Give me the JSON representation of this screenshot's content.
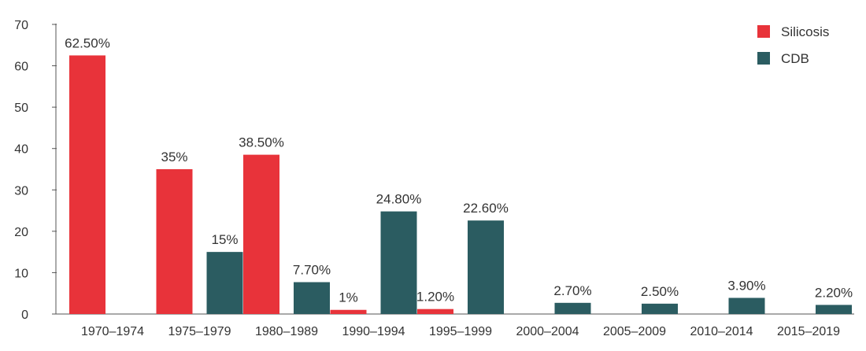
{
  "chart_data": {
    "type": "bar",
    "categories": [
      "1970–1974",
      "1975–1979",
      "1980–1989",
      "1990–1994",
      "1995–1999",
      "2000–2004",
      "2005–2009",
      "2010–2014",
      "2015–2019"
    ],
    "series": [
      {
        "name": "Silicosis",
        "color": "#e8333a",
        "values": [
          62.5,
          35,
          38.5,
          1,
          1.2,
          null,
          null,
          null,
          null
        ],
        "labels": [
          "62.50%",
          "35%",
          "38.50%",
          "1%",
          "1.20%",
          "",
          "",
          "",
          ""
        ]
      },
      {
        "name": "CDB",
        "color": "#2b5c61",
        "values": [
          null,
          15,
          7.7,
          24.8,
          22.6,
          2.7,
          2.5,
          3.9,
          2.2
        ],
        "labels": [
          "",
          "15%",
          "7.70%",
          "24.80%",
          "22.60%",
          "2.70%",
          "2.50%",
          "3.90%",
          "2.20%"
        ]
      }
    ],
    "ylim": [
      0,
      70
    ],
    "yticks": [
      "0",
      "10",
      "20",
      "30",
      "40",
      "50",
      "60",
      "70"
    ],
    "ytick_values": [
      0,
      10,
      20,
      30,
      40,
      50,
      60,
      70
    ],
    "grid": false,
    "legend_position": "top-right",
    "title": "",
    "xlabel": "",
    "ylabel": ""
  }
}
